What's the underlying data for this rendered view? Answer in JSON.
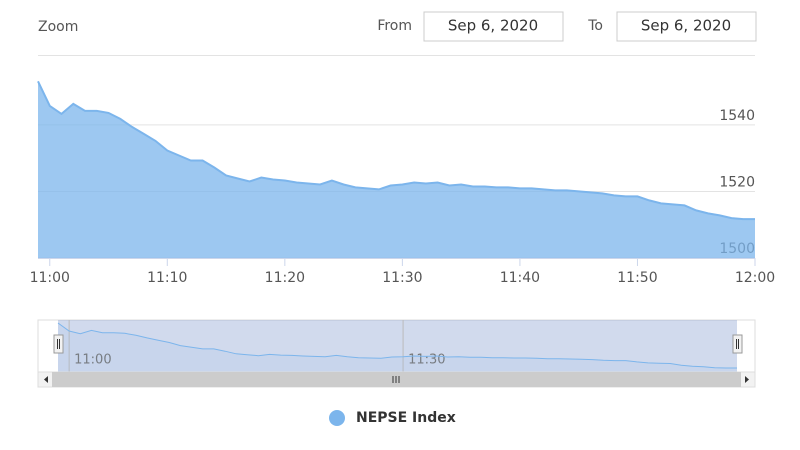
{
  "zoom_label": "Zoom",
  "from_label": "From",
  "from_date": "Sep 6, 2020",
  "to_label": "To",
  "to_date": "Sep 6, 2020",
  "chart_data": {
    "type": "area",
    "x": [
      "10:59",
      "11:00",
      "11:01",
      "11:02",
      "11:03",
      "11:04",
      "11:05",
      "11:06",
      "11:07",
      "11:08",
      "11:09",
      "11:10",
      "11:11",
      "11:12",
      "11:13",
      "11:14",
      "11:15",
      "11:16",
      "11:17",
      "11:18",
      "11:19",
      "11:20",
      "11:21",
      "11:22",
      "11:23",
      "11:24",
      "11:25",
      "11:26",
      "11:27",
      "11:28",
      "11:29",
      "11:30",
      "11:31",
      "11:32",
      "11:33",
      "11:34",
      "11:35",
      "11:36",
      "11:37",
      "11:38",
      "11:39",
      "11:40",
      "11:41",
      "11:42",
      "11:43",
      "11:44",
      "11:45",
      "11:46",
      "11:47",
      "11:48",
      "11:49",
      "11:50",
      "11:51",
      "11:52",
      "11:53",
      "11:54",
      "11:55",
      "11:56",
      "11:57",
      "11:58",
      "11:59",
      "12:00"
    ],
    "series": [
      {
        "name": "NEPSE Index",
        "color": "#7cb5ec",
        "values": [
          1553.1,
          1545.7,
          1543.3,
          1546.3,
          1544.2,
          1544.2,
          1543.6,
          1541.8,
          1539.4,
          1537.3,
          1535.2,
          1532.3,
          1530.8,
          1529.3,
          1529.3,
          1527.2,
          1524.8,
          1523.9,
          1523.0,
          1524.2,
          1523.6,
          1523.3,
          1522.7,
          1522.4,
          1522.1,
          1523.3,
          1522.1,
          1521.2,
          1520.9,
          1520.6,
          1521.8,
          1522.1,
          1522.7,
          1522.4,
          1522.7,
          1521.8,
          1522.1,
          1521.5,
          1521.5,
          1521.2,
          1521.2,
          1520.9,
          1520.9,
          1520.6,
          1520.3,
          1520.3,
          1520.0,
          1519.7,
          1519.4,
          1518.8,
          1518.5,
          1518.5,
          1517.3,
          1516.4,
          1516.1,
          1515.8,
          1514.3,
          1513.4,
          1512.8,
          1512.0,
          1511.7,
          1511.7
        ]
      }
    ],
    "xlim": [
      "10:59",
      "12:00"
    ],
    "xticks": [
      "11:00",
      "11:10",
      "11:20",
      "11:30",
      "11:40",
      "11:50",
      "12:00"
    ],
    "ylim": [
      1500,
      1561
    ],
    "yticks": [
      1500,
      1520,
      1540
    ],
    "grid": true,
    "navigator_xticks": [
      "11:00",
      "11:30"
    ]
  }
}
